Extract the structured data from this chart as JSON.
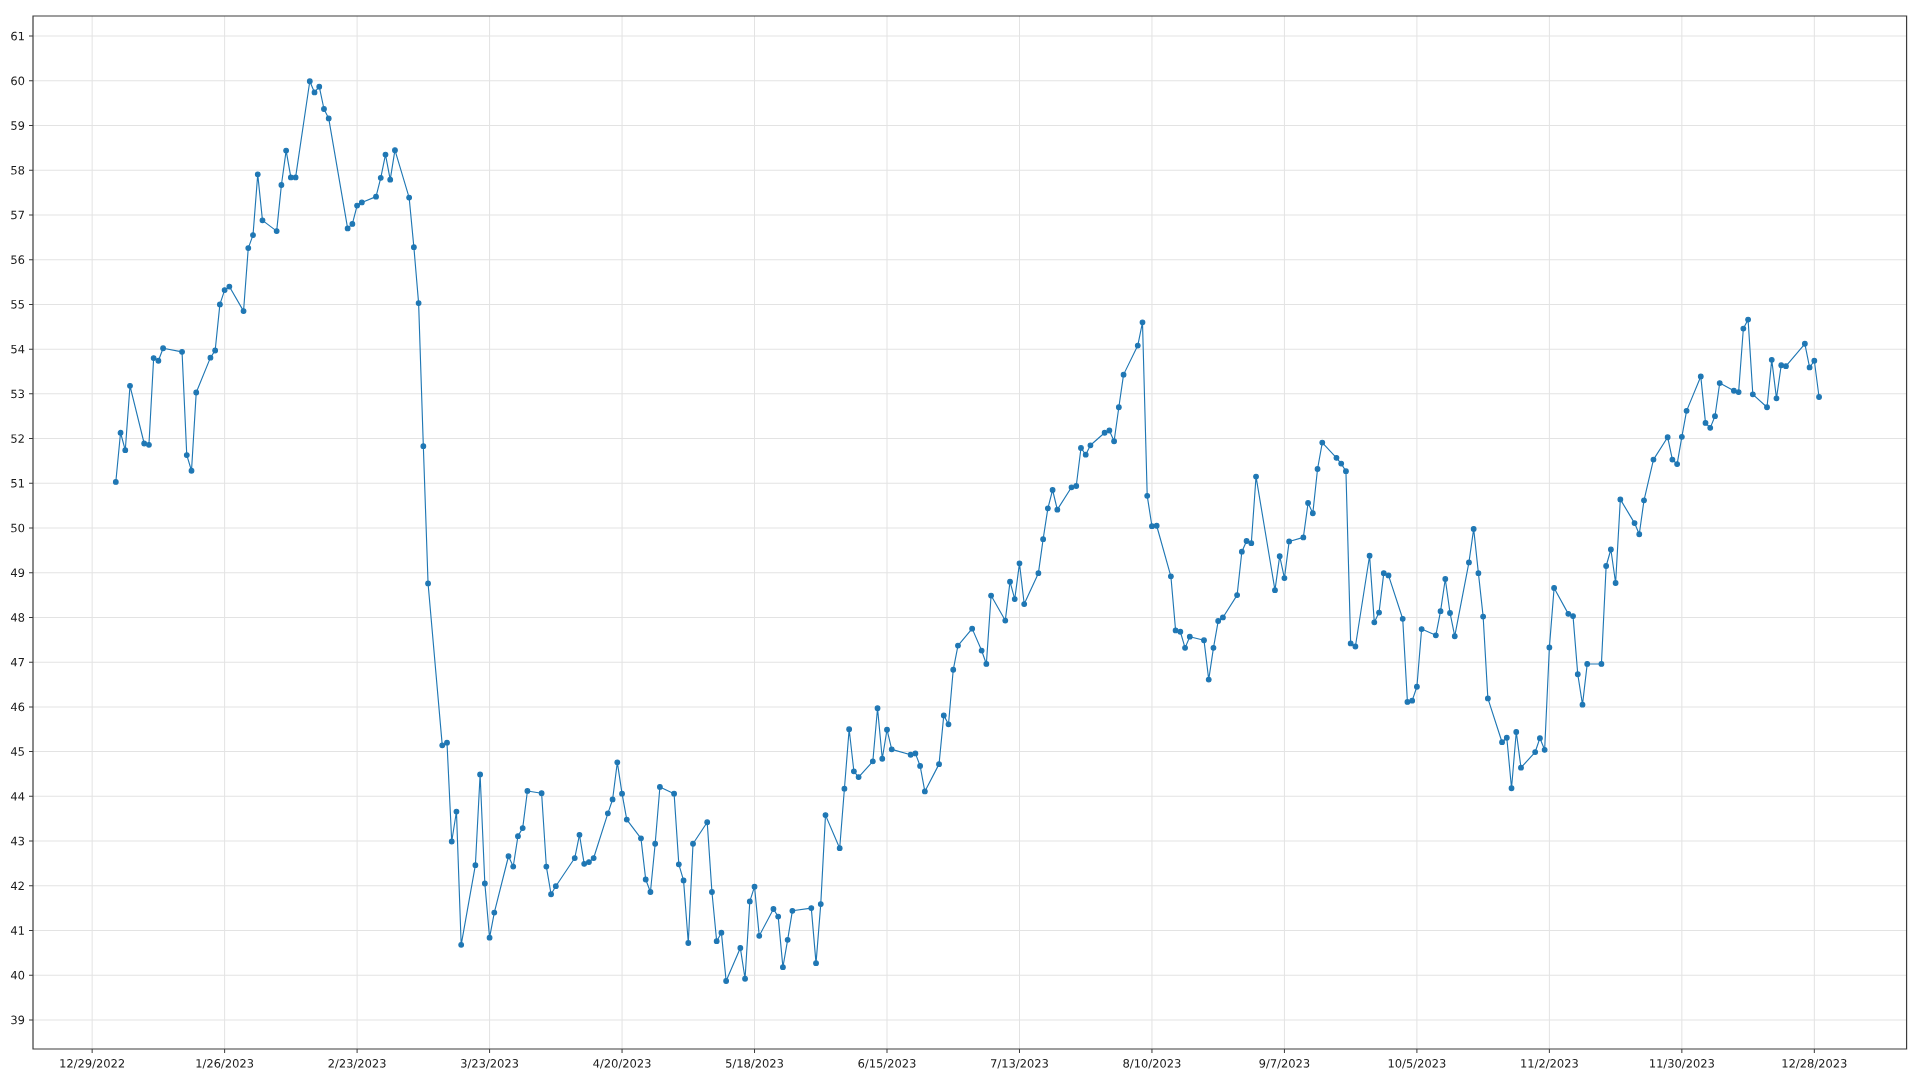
{
  "chart_data": {
    "type": "line",
    "x": [
      "2023-01-03",
      "2023-01-04",
      "2023-01-05",
      "2023-01-06",
      "2023-01-09",
      "2023-01-10",
      "2023-01-11",
      "2023-01-12",
      "2023-01-13",
      "2023-01-17",
      "2023-01-18",
      "2023-01-19",
      "2023-01-20",
      "2023-01-23",
      "2023-01-24",
      "2023-01-25",
      "2023-01-26",
      "2023-01-27",
      "2023-01-30",
      "2023-01-31",
      "2023-02-01",
      "2023-02-02",
      "2023-02-03",
      "2023-02-06",
      "2023-02-07",
      "2023-02-08",
      "2023-02-09",
      "2023-02-10",
      "2023-02-13",
      "2023-02-14",
      "2023-02-15",
      "2023-02-16",
      "2023-02-17",
      "2023-02-21",
      "2023-02-22",
      "2023-02-23",
      "2023-02-24",
      "2023-02-27",
      "2023-02-28",
      "2023-03-01",
      "2023-03-02",
      "2023-03-03",
      "2023-03-06",
      "2023-03-07",
      "2023-03-08",
      "2023-03-09",
      "2023-03-10",
      "2023-03-13",
      "2023-03-14",
      "2023-03-15",
      "2023-03-16",
      "2023-03-17",
      "2023-03-20",
      "2023-03-21",
      "2023-03-22",
      "2023-03-23",
      "2023-03-24",
      "2023-03-27",
      "2023-03-28",
      "2023-03-29",
      "2023-03-30",
      "2023-03-31",
      "2023-04-03",
      "2023-04-04",
      "2023-04-05",
      "2023-04-06",
      "2023-04-10",
      "2023-04-11",
      "2023-04-12",
      "2023-04-13",
      "2023-04-14",
      "2023-04-17",
      "2023-04-18",
      "2023-04-19",
      "2023-04-20",
      "2023-04-21",
      "2023-04-24",
      "2023-04-25",
      "2023-04-26",
      "2023-04-27",
      "2023-04-28",
      "2023-05-01",
      "2023-05-02",
      "2023-05-03",
      "2023-05-04",
      "2023-05-05",
      "2023-05-08",
      "2023-05-09",
      "2023-05-10",
      "2023-05-11",
      "2023-05-12",
      "2023-05-15",
      "2023-05-16",
      "2023-05-17",
      "2023-05-18",
      "2023-05-19",
      "2023-05-22",
      "2023-05-23",
      "2023-05-24",
      "2023-05-25",
      "2023-05-26",
      "2023-05-30",
      "2023-05-31",
      "2023-06-01",
      "2023-06-02",
      "2023-06-05",
      "2023-06-06",
      "2023-06-07",
      "2023-06-08",
      "2023-06-09",
      "2023-06-12",
      "2023-06-13",
      "2023-06-14",
      "2023-06-15",
      "2023-06-16",
      "2023-06-20",
      "2023-06-21",
      "2023-06-22",
      "2023-06-23",
      "2023-06-26",
      "2023-06-27",
      "2023-06-28",
      "2023-06-29",
      "2023-06-30",
      "2023-07-03",
      "2023-07-05",
      "2023-07-06",
      "2023-07-07",
      "2023-07-10",
      "2023-07-11",
      "2023-07-12",
      "2023-07-13",
      "2023-07-14",
      "2023-07-17",
      "2023-07-18",
      "2023-07-19",
      "2023-07-20",
      "2023-07-21",
      "2023-07-24",
      "2023-07-25",
      "2023-07-26",
      "2023-07-27",
      "2023-07-28",
      "2023-07-31",
      "2023-08-01",
      "2023-08-02",
      "2023-08-03",
      "2023-08-04",
      "2023-08-07",
      "2023-08-08",
      "2023-08-09",
      "2023-08-10",
      "2023-08-11",
      "2023-08-14",
      "2023-08-15",
      "2023-08-16",
      "2023-08-17",
      "2023-08-18",
      "2023-08-21",
      "2023-08-22",
      "2023-08-23",
      "2023-08-24",
      "2023-08-25",
      "2023-08-28",
      "2023-08-29",
      "2023-08-30",
      "2023-08-31",
      "2023-09-01",
      "2023-09-05",
      "2023-09-06",
      "2023-09-07",
      "2023-09-08",
      "2023-09-11",
      "2023-09-12",
      "2023-09-13",
      "2023-09-14",
      "2023-09-15",
      "2023-09-18",
      "2023-09-19",
      "2023-09-20",
      "2023-09-21",
      "2023-09-22",
      "2023-09-25",
      "2023-09-26",
      "2023-09-27",
      "2023-09-28",
      "2023-09-29",
      "2023-10-02",
      "2023-10-03",
      "2023-10-04",
      "2023-10-05",
      "2023-10-06",
      "2023-10-09",
      "2023-10-10",
      "2023-10-11",
      "2023-10-12",
      "2023-10-13",
      "2023-10-16",
      "2023-10-17",
      "2023-10-18",
      "2023-10-19",
      "2023-10-20",
      "2023-10-23",
      "2023-10-24",
      "2023-10-25",
      "2023-10-26",
      "2023-10-27",
      "2023-10-30",
      "2023-10-31",
      "2023-11-01",
      "2023-11-02",
      "2023-11-03",
      "2023-11-06",
      "2023-11-07",
      "2023-11-08",
      "2023-11-09",
      "2023-11-10",
      "2023-11-13",
      "2023-11-14",
      "2023-11-15",
      "2023-11-16",
      "2023-11-17",
      "2023-11-20",
      "2023-11-21",
      "2023-11-22",
      "2023-11-24",
      "2023-11-27",
      "2023-11-28",
      "2023-11-29",
      "2023-11-30",
      "2023-12-01",
      "2023-12-04",
      "2023-12-05",
      "2023-12-06",
      "2023-12-07",
      "2023-12-08",
      "2023-12-11",
      "2023-12-12",
      "2023-12-13",
      "2023-12-14",
      "2023-12-15",
      "2023-12-18",
      "2023-12-19",
      "2023-12-20",
      "2023-12-21",
      "2023-12-22",
      "2023-12-26",
      "2023-12-27",
      "2023-12-28",
      "2023-12-29"
    ],
    "values": [
      51.03,
      52.13,
      51.74,
      53.18,
      51.89,
      51.86,
      53.8,
      53.74,
      54.02,
      53.94,
      51.63,
      51.28,
      53.03,
      53.81,
      53.97,
      55.0,
      55.32,
      55.4,
      54.85,
      56.26,
      56.55,
      57.91,
      56.88,
      56.64,
      57.67,
      58.44,
      57.84,
      57.84,
      59.99,
      59.74,
      59.87,
      59.37,
      59.16,
      56.7,
      56.8,
      57.21,
      57.28,
      57.41,
      57.83,
      58.35,
      57.79,
      58.45,
      57.39,
      56.28,
      55.03,
      51.83,
      48.76,
      45.14,
      45.2,
      42.99,
      43.66,
      40.68,
      42.46,
      44.49,
      42.05,
      40.84,
      41.4,
      42.66,
      42.43,
      43.11,
      43.29,
      44.12,
      44.07,
      42.43,
      41.81,
      41.99,
      42.62,
      43.14,
      42.49,
      42.53,
      42.62,
      43.62,
      43.93,
      44.76,
      44.06,
      43.48,
      43.06,
      42.14,
      41.86,
      42.94,
      44.21,
      44.06,
      42.48,
      42.12,
      40.72,
      42.94,
      43.42,
      41.86,
      40.76,
      40.95,
      39.87,
      40.61,
      39.92,
      41.65,
      41.98,
      40.88,
      41.48,
      41.31,
      40.18,
      40.79,
      41.44,
      41.5,
      40.27,
      41.59,
      43.58,
      42.84,
      44.17,
      45.5,
      44.56,
      44.43,
      44.78,
      45.97,
      44.84,
      45.49,
      45.05,
      44.93,
      44.96,
      44.68,
      44.11,
      44.72,
      45.81,
      45.61,
      46.83,
      47.37,
      47.75,
      47.26,
      46.96,
      48.49,
      47.93,
      48.8,
      48.41,
      49.21,
      48.3,
      48.99,
      49.75,
      50.44,
      50.85,
      50.41,
      50.91,
      50.94,
      51.79,
      51.64,
      51.85,
      52.13,
      52.18,
      51.94,
      52.7,
      53.43,
      54.08,
      54.6,
      50.72,
      50.04,
      50.05,
      48.92,
      47.71,
      47.68,
      47.32,
      47.57,
      47.49,
      46.61,
      47.32,
      47.92,
      48.0,
      48.5,
      49.47,
      49.71,
      49.66,
      51.15,
      48.61,
      49.37,
      48.88,
      49.7,
      49.79,
      50.56,
      50.33,
      51.32,
      51.91,
      51.57,
      51.44,
      51.27,
      47.42,
      47.35,
      49.38,
      47.89,
      48.11,
      48.99,
      48.94,
      47.97,
      46.11,
      46.14,
      46.45,
      47.74,
      47.6,
      48.14,
      48.86,
      48.1,
      47.58,
      49.23,
      49.98,
      48.99,
      48.02,
      46.19,
      45.21,
      45.31,
      44.18,
      45.44,
      44.64,
      44.99,
      45.3,
      45.04,
      47.33,
      48.66,
      48.08,
      48.03,
      46.73,
      46.05,
      46.96,
      46.96,
      49.15,
      49.52,
      48.77,
      50.64,
      50.11,
      49.86,
      50.62,
      51.53,
      52.03,
      51.53,
      51.43,
      52.04,
      52.62,
      53.39,
      52.35,
      52.24,
      52.5,
      53.24,
      53.07,
      53.04,
      54.46,
      54.66,
      52.99,
      52.7,
      53.76,
      52.9,
      53.64,
      53.62,
      54.12,
      53.59,
      53.74,
      52.93
    ],
    "color": "#1f77b4",
    "xlim": [
      "2022-12-16T12:00",
      "2024-01-16T12:00"
    ],
    "ylim": [
      38.35,
      61.45
    ],
    "xticks": [
      {
        "value": "2022-12-29",
        "label": "12/29/2022"
      },
      {
        "value": "2023-01-26",
        "label": "1/26/2023"
      },
      {
        "value": "2023-02-23",
        "label": "2/23/2023"
      },
      {
        "value": "2023-03-23",
        "label": "3/23/2023"
      },
      {
        "value": "2023-04-20",
        "label": "4/20/2023"
      },
      {
        "value": "2023-05-18",
        "label": "5/18/2023"
      },
      {
        "value": "2023-06-15",
        "label": "6/15/2023"
      },
      {
        "value": "2023-07-13",
        "label": "7/13/2023"
      },
      {
        "value": "2023-08-10",
        "label": "8/10/2023"
      },
      {
        "value": "2023-09-07",
        "label": "9/7/2023"
      },
      {
        "value": "2023-10-05",
        "label": "10/5/2023"
      },
      {
        "value": "2023-11-02",
        "label": "11/2/2023"
      },
      {
        "value": "2023-11-30",
        "label": "11/30/2023"
      },
      {
        "value": "2023-12-28",
        "label": "12/28/2023"
      }
    ],
    "yticks": [
      39,
      40,
      41,
      42,
      43,
      44,
      45,
      46,
      47,
      48,
      49,
      50,
      51,
      52,
      53,
      54,
      55,
      56,
      57,
      58,
      59,
      60,
      61
    ],
    "grid": true,
    "marker": "circle",
    "line_style": "solid"
  }
}
